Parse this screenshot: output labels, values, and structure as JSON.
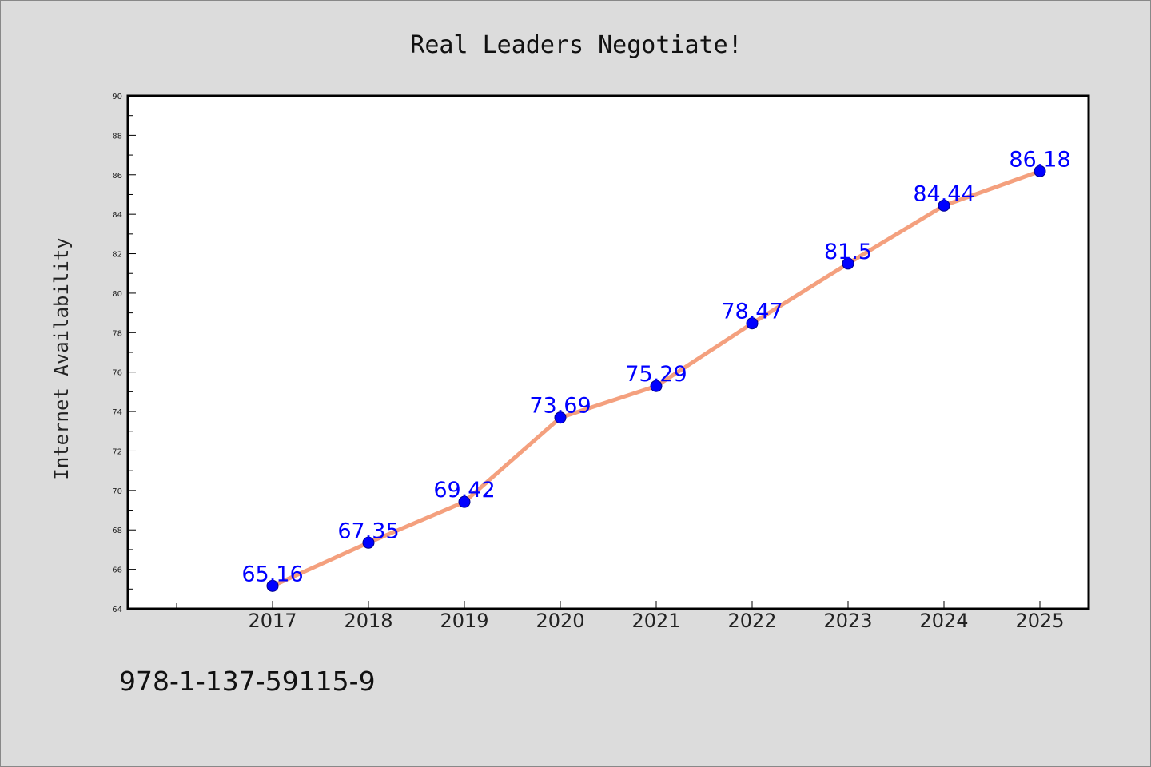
{
  "footer": {
    "code": "978-1-137-59115-9"
  },
  "colors": {
    "page_background": "#dcdcdc",
    "plot_background": "#ffffff",
    "line": "#f4a07e",
    "marker": "#0000ff",
    "label": "#0000ff"
  },
  "chart_data": {
    "type": "line",
    "title": "Real Leaders Negotiate!",
    "xlabel": "",
    "ylabel": "Internet Availability",
    "x": [
      "2017",
      "2018",
      "2019",
      "2020",
      "2021",
      "2022",
      "2023",
      "2024",
      "2025"
    ],
    "x_tick_labels": [
      "2017",
      "2018",
      "2019",
      "2020",
      "2021",
      "2022",
      "2023",
      "2024",
      "2025"
    ],
    "series": [
      {
        "values": [
          65.16,
          67.35,
          69.42,
          73.69,
          75.29,
          78.47,
          81.5,
          84.44,
          86.18
        ],
        "data_labels": [
          "65.16",
          "67.35",
          "69.42",
          "73.69",
          "75.29",
          "78.47",
          "81.5",
          "84.44",
          "86.18"
        ]
      }
    ],
    "ylim": [
      64,
      90
    ],
    "y_tick_labels": [
      "64",
      "66",
      "68",
      "70",
      "72",
      "74",
      "76",
      "78",
      "80",
      "82",
      "84",
      "86",
      "88",
      "90"
    ],
    "grid": false,
    "legend": "none"
  }
}
